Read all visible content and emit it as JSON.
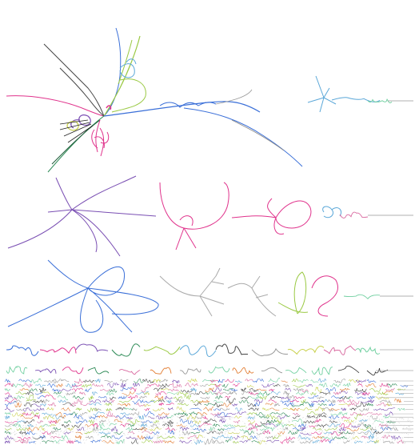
{
  "figure": {
    "background": "#ffffff",
    "description_hidden": "",
    "palette": [
      "#3a6fd8",
      "#e0338c",
      "#7a4fb3",
      "#2e8b57",
      "#9ac943",
      "#5aa7d8",
      "#444444",
      "#999999",
      "#c8d04a",
      "#d96aa0",
      "#6fcf9f",
      "#e27b2f"
    ]
  }
}
